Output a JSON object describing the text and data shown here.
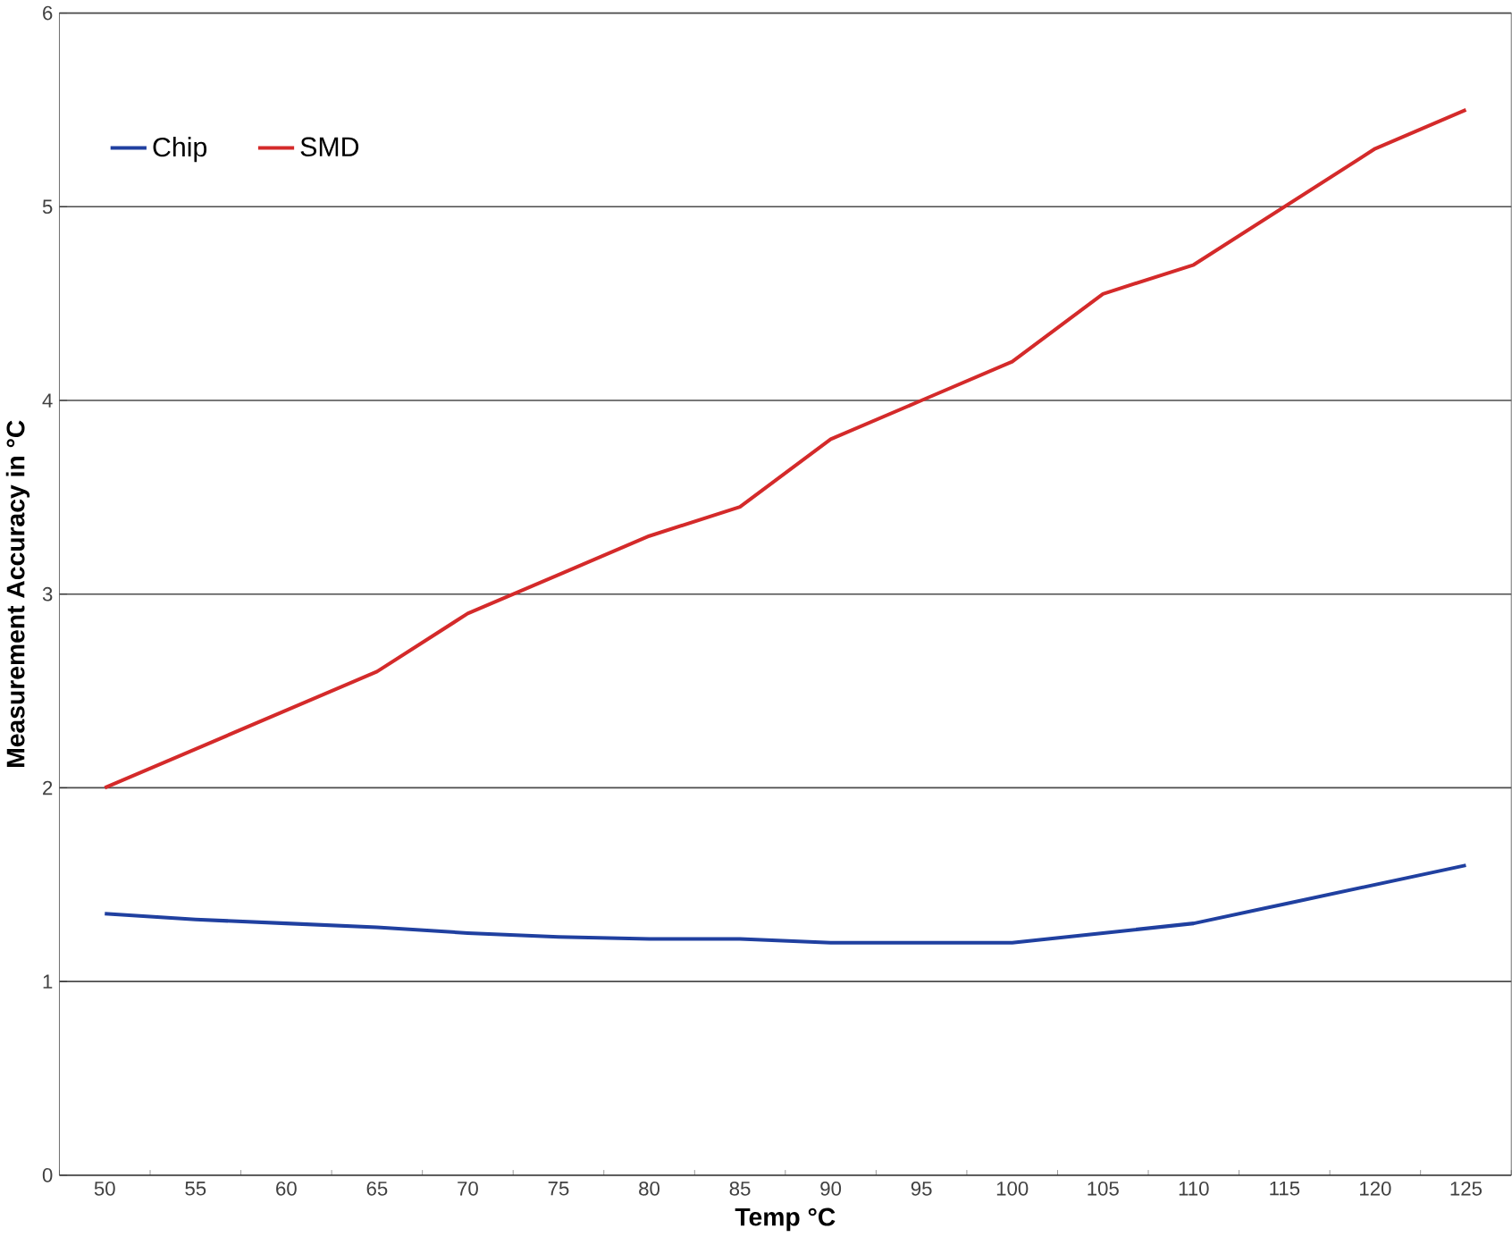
{
  "chart_data": {
    "type": "line",
    "xlabel": "Temp °C",
    "ylabel": "Measurement Accuracy in °C",
    "categories": [
      "50",
      "55",
      "60",
      "65",
      "70",
      "75",
      "80",
      "85",
      "90",
      "95",
      "100",
      "105",
      "110",
      "115",
      "120",
      "125"
    ],
    "series": [
      {
        "name": "Chip",
        "color": "#2040a0",
        "values": [
          1.35,
          1.32,
          1.3,
          1.28,
          1.25,
          1.23,
          1.22,
          1.22,
          1.2,
          1.2,
          1.2,
          1.25,
          1.3,
          1.4,
          1.5,
          1.6
        ]
      },
      {
        "name": "SMD",
        "color": "#d42a2a",
        "values": [
          2.0,
          2.2,
          2.4,
          2.6,
          2.9,
          3.1,
          3.3,
          3.45,
          3.8,
          4.0,
          4.2,
          4.55,
          4.7,
          5.0,
          5.3,
          5.5
        ]
      }
    ],
    "ylim": [
      0,
      6
    ],
    "yticks": [
      0,
      1,
      2,
      3,
      4,
      5,
      6
    ],
    "grid": "y",
    "legend": "top left",
    "marker": "none",
    "line_style": "solid"
  }
}
